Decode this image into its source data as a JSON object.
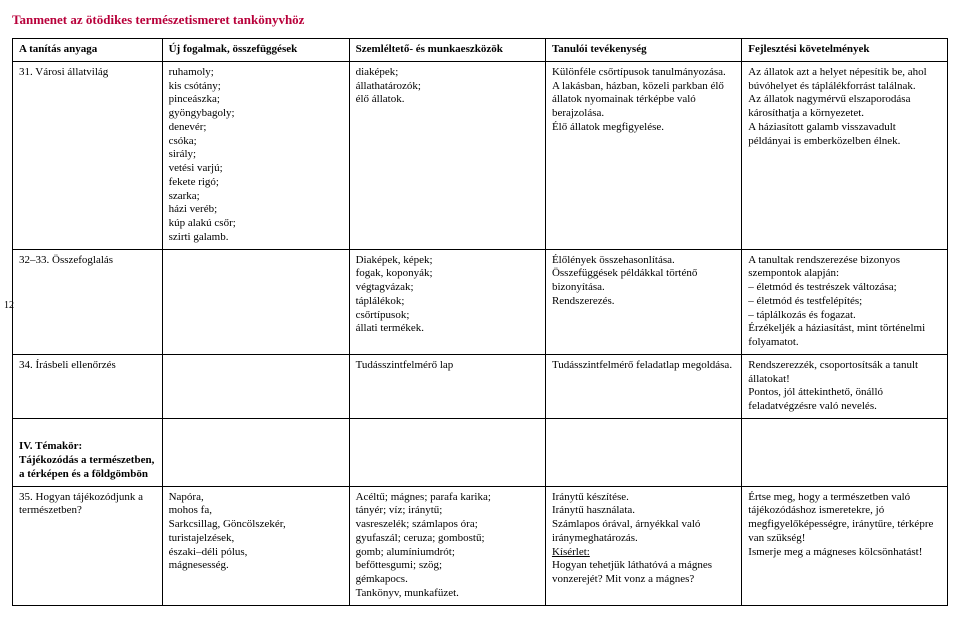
{
  "title": "Tanmenet az ötödikes természetismeret tankönyvhöz",
  "pageNumber": "12",
  "columns": {
    "c1": "A tanítás anyaga",
    "c2": "Új fogalmak, összefüggések",
    "c3": "Szemléltető-\nés munkaeszközök",
    "c4": "Tanulói tevékenység",
    "c5": "Fejlesztési követelmények"
  },
  "colWidths": {
    "c1": "16%",
    "c2": "20%",
    "c3": "21%",
    "c4": "21%",
    "c5": "22%"
  },
  "rows": [
    {
      "c1": "31. Városi állatvilág",
      "c2": "ruhamoly;\nkis csótány;\npinceászka;\ngyöngybagoly;\ndenevér;\ncsóka;\nsirály;\nvetési varjú;\nfekete rigó;\nszarka;\nházi veréb;\nkúp alakú csőr;\nszirti galamb.",
      "c3": "diaképek;\nállathatározók;\nélő állatok.",
      "c4": "Különféle csőrtípusok tanulmányozása.\nA lakásban, házban, közeli parkban élő állatok nyomainak térképbe való berajzolása.\nÉlő állatok megfigyelése.",
      "c5": "Az állatok azt a helyet népesítik be, ahol búvóhelyet és táplálékforrást találnak.\nAz állatok nagymérvű elszaporodása károsíthatja a környezetet.\nA háziasított galamb visszavadult példányai is emberközelben élnek."
    },
    {
      "c1": "32–33. Összefoglalás",
      "c2": "",
      "c3": "Diaképek, képek;\nfogak, koponyák;\nvégtagvázak;\ntáplálékok;\ncsőrtípusok;\nállati termékek.",
      "c4": "Élőlények összehasonlítása.\nÖsszefüggések példákkal történő bizonyítása.\nRendszerezés.",
      "c5": "A tanultak rendszerezése bizonyos szempontok alapján:\n– életmód és testrészek változása;\n– életmód és testfelépítés;\n– táplálkozás és fogazat.\nÉrzékeljék a háziasítást, mint történelmi folyamatot."
    },
    {
      "c1": "34. Írásbeli ellenőrzés",
      "c2": "",
      "c3": "Tudásszintfelmérő lap",
      "c4": "Tudásszintfelmérő feladatlap megoldása.",
      "c5": "Rendszerezzék, csoportosítsák a tanult állatokat!\nPontos, jól áttekinthető, önálló feladatvégzésre való nevelés."
    }
  ],
  "section": {
    "c1": "IV. Témakör:\nTájékozódás a természetben, a térképen és a földgömbön"
  },
  "row35": {
    "c1": "35. Hogyan tájékozódjunk a természetben?",
    "c2": "Napóra,\nmohos fa,\nSarkcsillag, Göncölszekér,\nturistajelzések,\nészaki–déli pólus,\nmágnesesség.",
    "c3": "Acéltű; mágnes; parafa karika;\ntányér; víz; iránytű;\nvasreszelék; számlapos óra;\ngyufaszál; ceruza; gombostű;\ngomb; alumíniumdrót;\nbefőttesgumi; szög;\ngémkapocs.\nTankönyv, munkafüzet.",
    "c4_pre": "Iránytű készítése.\nIránytű használata.\nSzámlapos órával, árnyékkal való iránymeghatározás.\n",
    "c4_kiserlet": "Kísérlet:",
    "c4_post": "\nHogyan tehetjük láthatóvá a mágnes vonzerejét? Mit vonz a mágnes?",
    "c5": "Értse meg, hogy a természetben való tájékozódáshoz ismeretekre, jó megfigyelőképességre, iránytűre, térképre van szükség!\nIsmerje meg a mágneses kölcsönhatást!"
  }
}
